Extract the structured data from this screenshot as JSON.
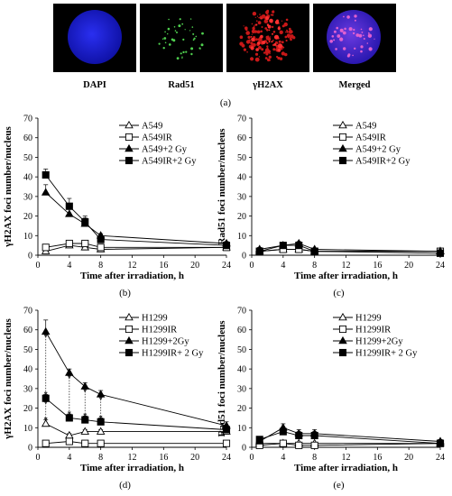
{
  "figure": {
    "micro_panels": [
      {
        "label": "DAPI",
        "name": "dapi"
      },
      {
        "label": "Rad51",
        "name": "rad51"
      },
      {
        "label": "γH2AX",
        "name": "gh2ax"
      },
      {
        "label": "Merged",
        "name": "merged"
      }
    ],
    "panel_a_label": "(a)"
  },
  "chart_data": [
    {
      "id": "b",
      "type": "line",
      "panel_label": "(b)",
      "ylabel": "γH2AX foci number/nucleus",
      "xlabel": "Time after irradiation, h",
      "xlim": [
        0,
        24
      ],
      "ylim": [
        0,
        70
      ],
      "xticks": [
        0,
        4,
        8,
        12,
        16,
        20,
        24
      ],
      "yticks": [
        0,
        10,
        20,
        30,
        40,
        50,
        60,
        70
      ],
      "x": [
        1,
        4,
        6,
        8,
        24
      ],
      "series": [
        {
          "name": "A549",
          "marker": "open-triangle",
          "values": [
            2,
            5,
            4,
            3,
            4
          ],
          "err": [
            0.5,
            1,
            1,
            0.5,
            0.5
          ]
        },
        {
          "name": "A549IR",
          "marker": "open-square",
          "values": [
            4,
            6,
            6,
            4,
            4
          ],
          "err": [
            1,
            1,
            1,
            0.5,
            0.5
          ]
        },
        {
          "name": "A549+2 Gy",
          "marker": "filled-triangle",
          "values": [
            32,
            21,
            16,
            10,
            6
          ],
          "err": [
            4,
            4,
            3,
            1,
            1
          ]
        },
        {
          "name": "A549IR+2 Gy",
          "marker": "filled-square",
          "values": [
            41,
            25,
            17,
            8,
            5
          ],
          "err": [
            3,
            4,
            3,
            1,
            1
          ]
        }
      ],
      "arrows": []
    },
    {
      "id": "c",
      "type": "line",
      "panel_label": "(c)",
      "ylabel": "Rad51 foci number/nucleus",
      "xlabel": "Time after irradiation, h",
      "xlim": [
        0,
        24
      ],
      "ylim": [
        0,
        70
      ],
      "xticks": [
        0,
        4,
        8,
        12,
        16,
        20,
        24
      ],
      "yticks": [
        0,
        10,
        20,
        30,
        40,
        50,
        60,
        70
      ],
      "x": [
        1,
        4,
        6,
        8,
        24
      ],
      "series": [
        {
          "name": "A549",
          "marker": "open-triangle",
          "values": [
            2,
            3,
            3,
            2,
            2
          ],
          "err": [
            0.5,
            0.5,
            0.5,
            0.5,
            0.5
          ]
        },
        {
          "name": "A549IR",
          "marker": "open-square",
          "values": [
            2,
            3,
            3,
            2,
            2
          ],
          "err": [
            0.5,
            0.5,
            0.5,
            0.5,
            0.5
          ]
        },
        {
          "name": "A549+2 Gy",
          "marker": "filled-triangle",
          "values": [
            3,
            5,
            6,
            3,
            2
          ],
          "err": [
            1,
            1,
            1,
            0.5,
            0.5
          ]
        },
        {
          "name": "A549IR+2 Gy",
          "marker": "filled-square",
          "values": [
            2,
            5,
            5,
            2,
            1
          ],
          "err": [
            1,
            1,
            1,
            0.5,
            0.5
          ]
        }
      ],
      "arrows": []
    },
    {
      "id": "d",
      "type": "line",
      "panel_label": "(d)",
      "ylabel": "γH2AX foci number/nucleus",
      "xlabel": "Time after irradiation, h",
      "xlim": [
        0,
        24
      ],
      "ylim": [
        0,
        70
      ],
      "xticks": [
        0,
        4,
        8,
        12,
        16,
        20,
        24
      ],
      "yticks": [
        0,
        10,
        20,
        30,
        40,
        50,
        60,
        70
      ],
      "x": [
        1,
        4,
        6,
        8,
        24
      ],
      "series": [
        {
          "name": "H1299",
          "marker": "open-triangle",
          "values": [
            12,
            6,
            8,
            8,
            8
          ],
          "err": [
            2,
            1,
            1,
            1,
            1
          ]
        },
        {
          "name": "H1299IR",
          "marker": "open-square",
          "values": [
            2,
            3,
            2,
            2,
            2
          ],
          "err": [
            0.5,
            0.5,
            0.5,
            0.5,
            0.5
          ]
        },
        {
          "name": "H1299+2Gy",
          "marker": "filled-triangle",
          "values": [
            59,
            38,
            31,
            27,
            11
          ],
          "err": [
            6,
            2,
            2,
            2,
            2
          ]
        },
        {
          "name": "H1299IR+ 2 Gy",
          "marker": "filled-square",
          "values": [
            25,
            15,
            14,
            13,
            9
          ],
          "err": [
            2,
            2,
            2,
            2,
            1
          ]
        }
      ],
      "arrows": [
        {
          "x": 1,
          "from": 59,
          "to": 25
        },
        {
          "x": 1,
          "from": 25,
          "to": 12
        },
        {
          "x": 4,
          "from": 38,
          "to": 15
        },
        {
          "x": 6,
          "from": 31,
          "to": 14
        },
        {
          "x": 8,
          "from": 27,
          "to": 13
        }
      ]
    },
    {
      "id": "e",
      "type": "line",
      "panel_label": "(e)",
      "ylabel": "Rad51 foci number/nucleus",
      "xlabel": "Time after irradiation, h",
      "xlim": [
        0,
        24
      ],
      "ylim": [
        0,
        70
      ],
      "xticks": [
        0,
        4,
        8,
        12,
        16,
        20,
        24
      ],
      "yticks": [
        0,
        10,
        20,
        30,
        40,
        50,
        60,
        70
      ],
      "x": [
        1,
        4,
        6,
        8,
        24
      ],
      "series": [
        {
          "name": "H1299",
          "marker": "open-triangle",
          "values": [
            2,
            2,
            2,
            2,
            2
          ],
          "err": [
            0.5,
            0.5,
            0.5,
            0.5,
            0.5
          ]
        },
        {
          "name": "H1299IR",
          "marker": "open-square",
          "values": [
            1,
            2,
            1,
            1,
            2
          ],
          "err": [
            0.5,
            0.5,
            0.5,
            0.5,
            0.5
          ]
        },
        {
          "name": "H1299+2Gy",
          "marker": "filled-triangle",
          "values": [
            3,
            10,
            7,
            7,
            3
          ],
          "err": [
            1,
            2,
            2,
            2,
            1
          ]
        },
        {
          "name": "H1299IR+ 2 Gy",
          "marker": "filled-square",
          "values": [
            4,
            8,
            6,
            6,
            2
          ],
          "err": [
            1,
            2,
            2,
            2,
            1
          ]
        }
      ],
      "arrows": []
    }
  ],
  "colors": {
    "dapi": "#1d22d6",
    "rad51_dots": "#4fd04f",
    "gh2ax": "#c81818",
    "merged": "#4a2ad0",
    "axes": "#000000"
  }
}
